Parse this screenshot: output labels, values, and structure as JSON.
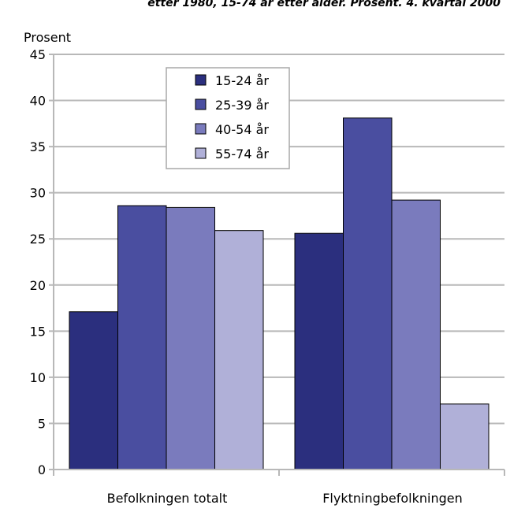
{
  "chart_data": {
    "type": "bar",
    "title": "etter 1980, 15-74 år etter alder. Prosent. 4. kvartal 2000",
    "ylabel": "Prosent",
    "xlabel": "",
    "ylim": [
      0,
      45
    ],
    "yticks": [
      0,
      5,
      10,
      15,
      20,
      25,
      30,
      35,
      40,
      45
    ],
    "grid": true,
    "legend_position": "top-center",
    "categories": [
      "Befolkningen totalt",
      "Flyktningbefolkningen"
    ],
    "series": [
      {
        "name": "15-24 år",
        "color": "#2b2f7e",
        "values": [
          17.1,
          25.6
        ]
      },
      {
        "name": "25-39 år",
        "color": "#4a4ea0",
        "values": [
          28.6,
          38.1
        ]
      },
      {
        "name": "40-54 år",
        "color": "#7a7bbd",
        "values": [
          28.4,
          29.2
        ]
      },
      {
        "name": "55-74 år",
        "color": "#b0b0d8",
        "values": [
          25.9,
          7.1
        ]
      }
    ]
  }
}
